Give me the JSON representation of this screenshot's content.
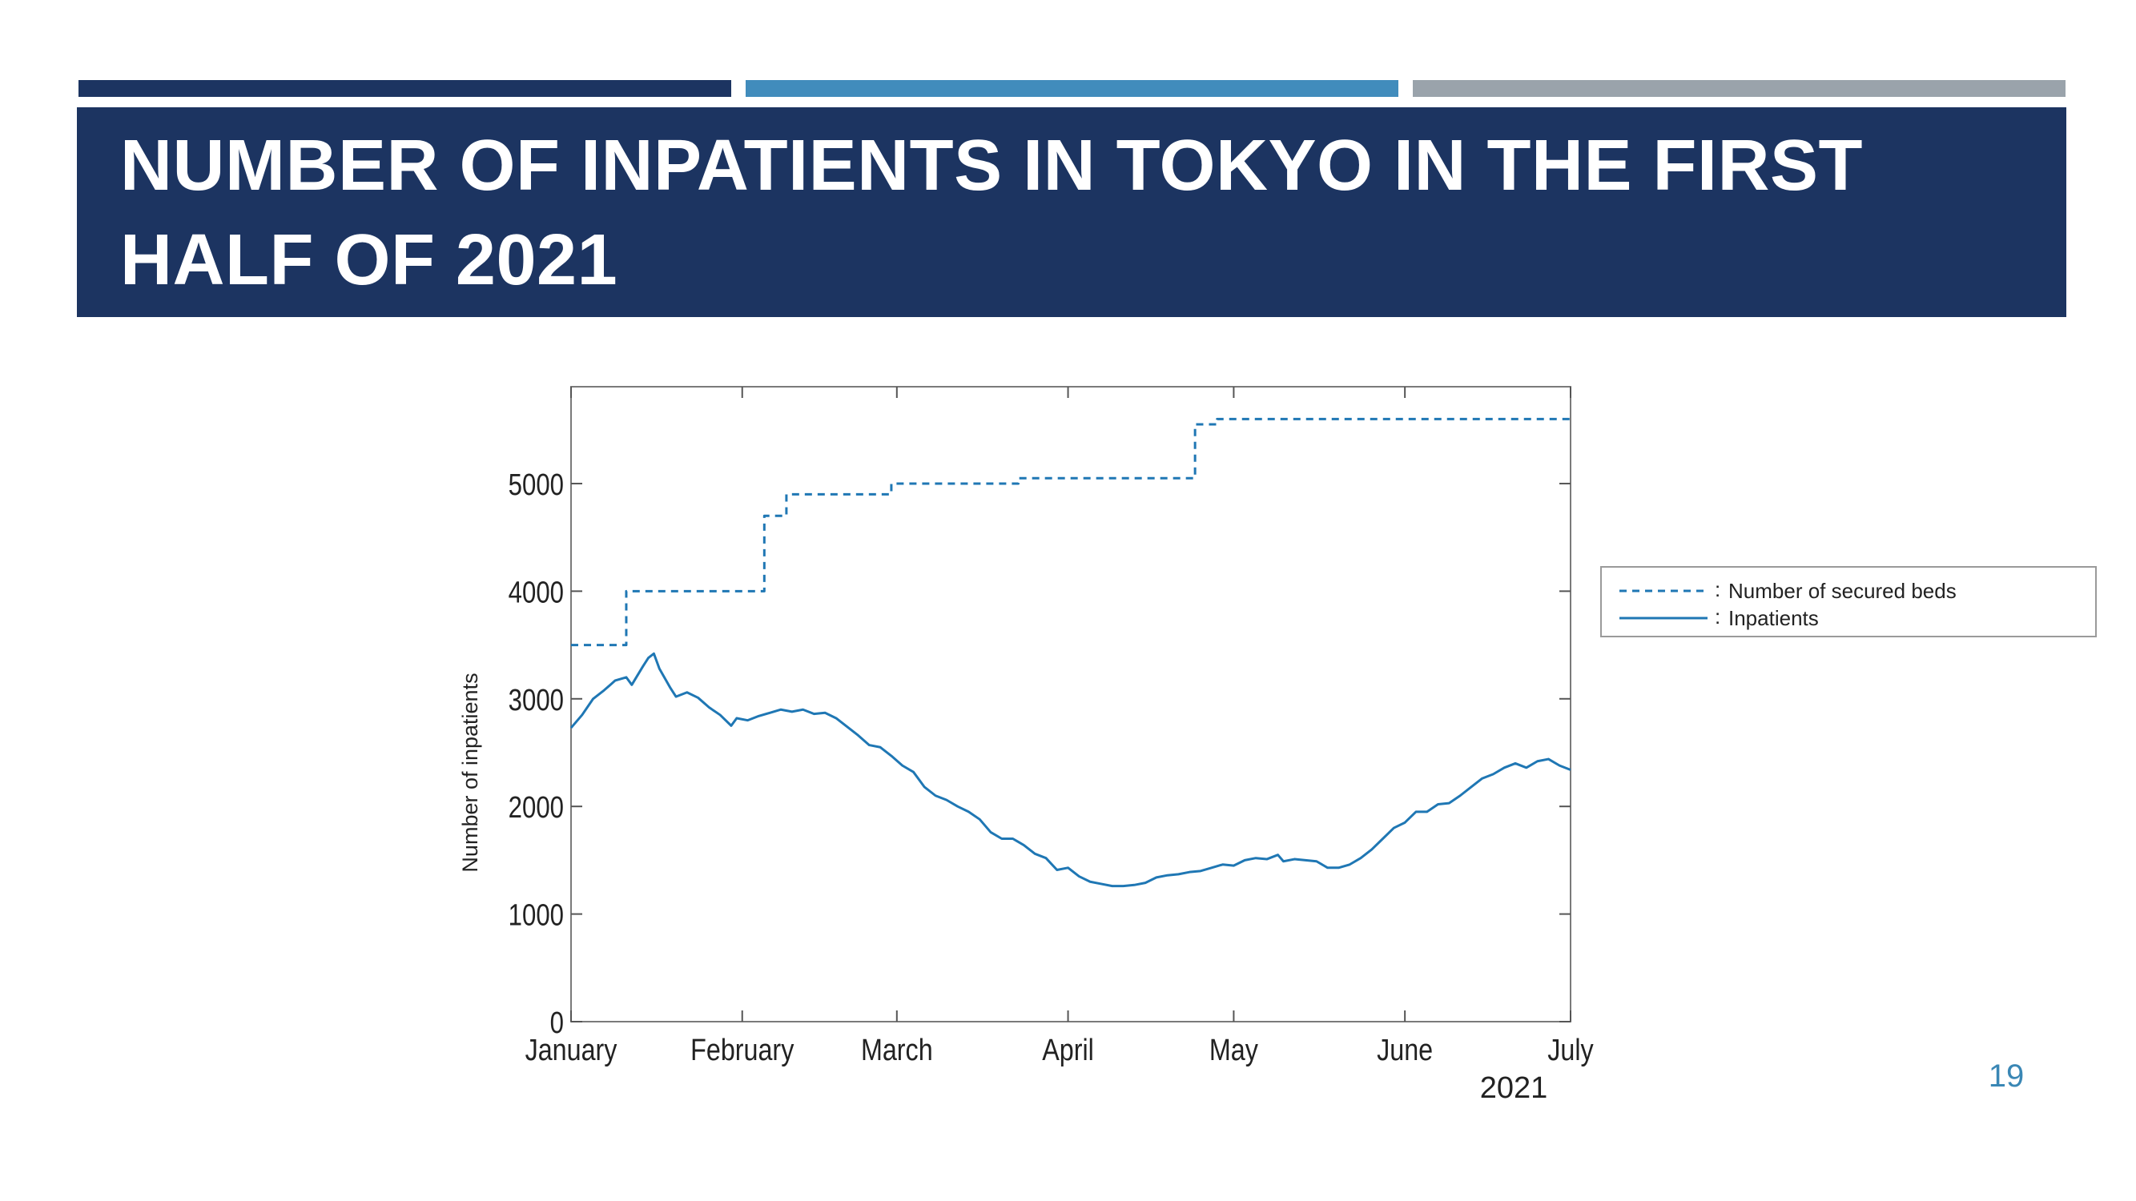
{
  "header": {
    "title": "NUMBER OF INPATIENTS IN TOKYO IN THE FIRST HALF OF 2021",
    "bar_colors": [
      "#1c3461",
      "#418cbc",
      "#9aa3ab"
    ],
    "title_bg": "#1c3461"
  },
  "page_number": "19",
  "chart_data": {
    "type": "line",
    "title": "",
    "xlabel": "2021",
    "ylabel": "Number of inpatients",
    "x_unit": "date",
    "xlim": [
      "2021-01-01",
      "2021-07-01"
    ],
    "ylim": [
      0,
      5900
    ],
    "yticks": [
      0,
      1000,
      2000,
      3000,
      4000,
      5000
    ],
    "xticks": [
      {
        "label": "January",
        "date": "2021-01-01"
      },
      {
        "label": "February",
        "date": "2021-02-01"
      },
      {
        "label": "March",
        "date": "2021-03-01"
      },
      {
        "label": "April",
        "date": "2021-04-01"
      },
      {
        "label": "May",
        "date": "2021-05-01"
      },
      {
        "label": "June",
        "date": "2021-06-01"
      },
      {
        "label": "July",
        "date": "2021-07-01"
      }
    ],
    "grid": false,
    "legend": {
      "position": "outside-right"
    },
    "series": [
      {
        "name": "Number of secured beds",
        "style": "dashed-step",
        "color": "#1f77b4",
        "points": [
          [
            "2021-01-01",
            3500
          ],
          [
            "2021-01-11",
            4000
          ],
          [
            "2021-02-05",
            4700
          ],
          [
            "2021-02-09",
            4900
          ],
          [
            "2021-02-28",
            5000
          ],
          [
            "2021-03-23",
            5050
          ],
          [
            "2021-04-24",
            5550
          ],
          [
            "2021-04-28",
            5600
          ],
          [
            "2021-07-01",
            5600
          ]
        ]
      },
      {
        "name": "Inpatients",
        "style": "solid",
        "color": "#1f77b4",
        "points": [
          [
            "2021-01-01",
            2730
          ],
          [
            "2021-01-03",
            2850
          ],
          [
            "2021-01-05",
            3000
          ],
          [
            "2021-01-07",
            3080
          ],
          [
            "2021-01-09",
            3170
          ],
          [
            "2021-01-11",
            3200
          ],
          [
            "2021-01-12",
            3130
          ],
          [
            "2021-01-14",
            3300
          ],
          [
            "2021-01-15",
            3380
          ],
          [
            "2021-01-16",
            3420
          ],
          [
            "2021-01-17",
            3280
          ],
          [
            "2021-01-19",
            3100
          ],
          [
            "2021-01-20",
            3020
          ],
          [
            "2021-01-22",
            3060
          ],
          [
            "2021-01-24",
            3010
          ],
          [
            "2021-01-26",
            2920
          ],
          [
            "2021-01-28",
            2850
          ],
          [
            "2021-01-30",
            2750
          ],
          [
            "2021-01-31",
            2820
          ],
          [
            "2021-02-02",
            2800
          ],
          [
            "2021-02-04",
            2840
          ],
          [
            "2021-02-06",
            2870
          ],
          [
            "2021-02-08",
            2900
          ],
          [
            "2021-02-10",
            2880
          ],
          [
            "2021-02-12",
            2900
          ],
          [
            "2021-02-14",
            2860
          ],
          [
            "2021-02-16",
            2870
          ],
          [
            "2021-02-18",
            2820
          ],
          [
            "2021-02-20",
            2740
          ],
          [
            "2021-02-22",
            2660
          ],
          [
            "2021-02-24",
            2570
          ],
          [
            "2021-02-26",
            2550
          ],
          [
            "2021-02-28",
            2470
          ],
          [
            "2021-03-02",
            2380
          ],
          [
            "2021-03-04",
            2320
          ],
          [
            "2021-03-06",
            2180
          ],
          [
            "2021-03-08",
            2100
          ],
          [
            "2021-03-10",
            2060
          ],
          [
            "2021-03-12",
            2000
          ],
          [
            "2021-03-14",
            1950
          ],
          [
            "2021-03-16",
            1880
          ],
          [
            "2021-03-18",
            1760
          ],
          [
            "2021-03-20",
            1700
          ],
          [
            "2021-03-22",
            1700
          ],
          [
            "2021-03-24",
            1640
          ],
          [
            "2021-03-26",
            1560
          ],
          [
            "2021-03-28",
            1520
          ],
          [
            "2021-03-30",
            1410
          ],
          [
            "2021-04-01",
            1430
          ],
          [
            "2021-04-03",
            1350
          ],
          [
            "2021-04-05",
            1300
          ],
          [
            "2021-04-07",
            1280
          ],
          [
            "2021-04-09",
            1260
          ],
          [
            "2021-04-11",
            1260
          ],
          [
            "2021-04-13",
            1270
          ],
          [
            "2021-04-15",
            1290
          ],
          [
            "2021-04-17",
            1340
          ],
          [
            "2021-04-19",
            1360
          ],
          [
            "2021-04-21",
            1370
          ],
          [
            "2021-04-23",
            1390
          ],
          [
            "2021-04-25",
            1400
          ],
          [
            "2021-04-27",
            1430
          ],
          [
            "2021-04-29",
            1460
          ],
          [
            "2021-05-01",
            1450
          ],
          [
            "2021-05-03",
            1500
          ],
          [
            "2021-05-05",
            1520
          ],
          [
            "2021-05-07",
            1510
          ],
          [
            "2021-05-09",
            1550
          ],
          [
            "2021-05-10",
            1490
          ],
          [
            "2021-05-12",
            1510
          ],
          [
            "2021-05-14",
            1500
          ],
          [
            "2021-05-16",
            1490
          ],
          [
            "2021-05-18",
            1430
          ],
          [
            "2021-05-20",
            1430
          ],
          [
            "2021-05-22",
            1460
          ],
          [
            "2021-05-24",
            1520
          ],
          [
            "2021-05-26",
            1600
          ],
          [
            "2021-05-28",
            1700
          ],
          [
            "2021-05-30",
            1800
          ],
          [
            "2021-06-01",
            1850
          ],
          [
            "2021-06-03",
            1950
          ],
          [
            "2021-06-05",
            1950
          ],
          [
            "2021-06-07",
            2020
          ],
          [
            "2021-06-09",
            2030
          ],
          [
            "2021-06-11",
            2100
          ],
          [
            "2021-06-13",
            2180
          ],
          [
            "2021-06-15",
            2260
          ],
          [
            "2021-06-17",
            2300
          ],
          [
            "2021-06-19",
            2360
          ],
          [
            "2021-06-21",
            2400
          ],
          [
            "2021-06-23",
            2360
          ],
          [
            "2021-06-25",
            2420
          ],
          [
            "2021-06-27",
            2440
          ],
          [
            "2021-06-29",
            2380
          ],
          [
            "2021-07-01",
            2340
          ]
        ]
      }
    ]
  }
}
